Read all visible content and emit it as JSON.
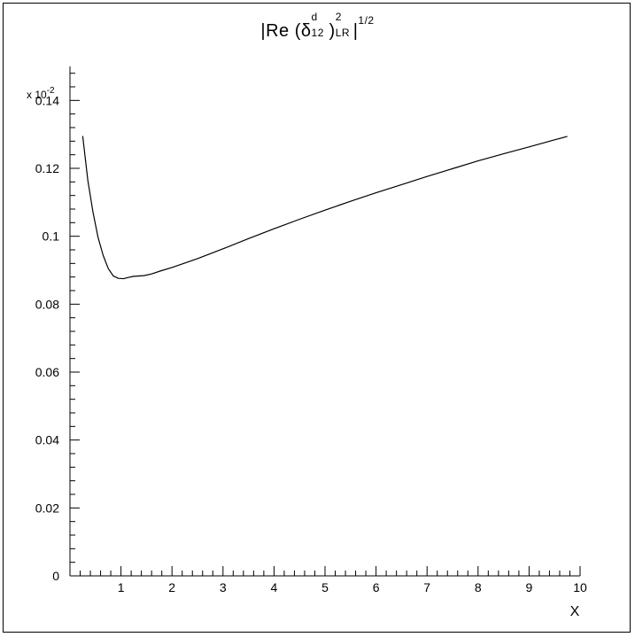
{
  "chart_data": {
    "type": "line",
    "title": "|Re (δ^d_12)^2_LR|^1/2",
    "title_parts": {
      "prefix": "|Re (δ",
      "delta_sup": "d",
      "delta_sub": "12",
      "paren_close": ")",
      "pow_sup": "2",
      "pow_sub": "LR",
      "bar": "|",
      "outer_sup": "1/2"
    },
    "xlabel": "X",
    "ylabel": "",
    "y_multiplier": "x 10",
    "y_multiplier_exp": "-2",
    "xlim": [
      0,
      10
    ],
    "ylim": [
      0,
      0.15
    ],
    "x_ticks": [
      "1",
      "2",
      "3",
      "4",
      "5",
      "6",
      "7",
      "8",
      "9",
      "10"
    ],
    "y_ticks": [
      "0",
      "0.02",
      "0.04",
      "0.06",
      "0.08",
      "0.1",
      "0.12",
      "0.14"
    ],
    "series": [
      {
        "x": [
          0.25,
          0.35,
          0.45,
          0.55,
          0.65,
          0.75,
          0.85,
          0.95,
          1.05,
          1.15,
          1.25,
          1.35,
          1.45,
          1.6,
          1.8,
          2.0,
          2.5,
          3.0,
          3.5,
          4.0,
          4.5,
          5.0,
          5.5,
          6.0,
          6.5,
          7.0,
          7.5,
          8.0,
          8.5,
          9.0,
          9.5,
          9.75
        ],
        "y": [
          0.1295,
          0.1165,
          0.1072,
          0.0997,
          0.0944,
          0.0905,
          0.0883,
          0.0876,
          0.0875,
          0.0879,
          0.0882,
          0.0883,
          0.0884,
          0.0889,
          0.0899,
          0.0908,
          0.0934,
          0.0963,
          0.0993,
          0.1022,
          0.105,
          0.1077,
          0.1103,
          0.1128,
          0.1152,
          0.1176,
          0.1199,
          0.1222,
          0.1243,
          0.1263,
          0.1284,
          0.1294
        ]
      }
    ]
  }
}
